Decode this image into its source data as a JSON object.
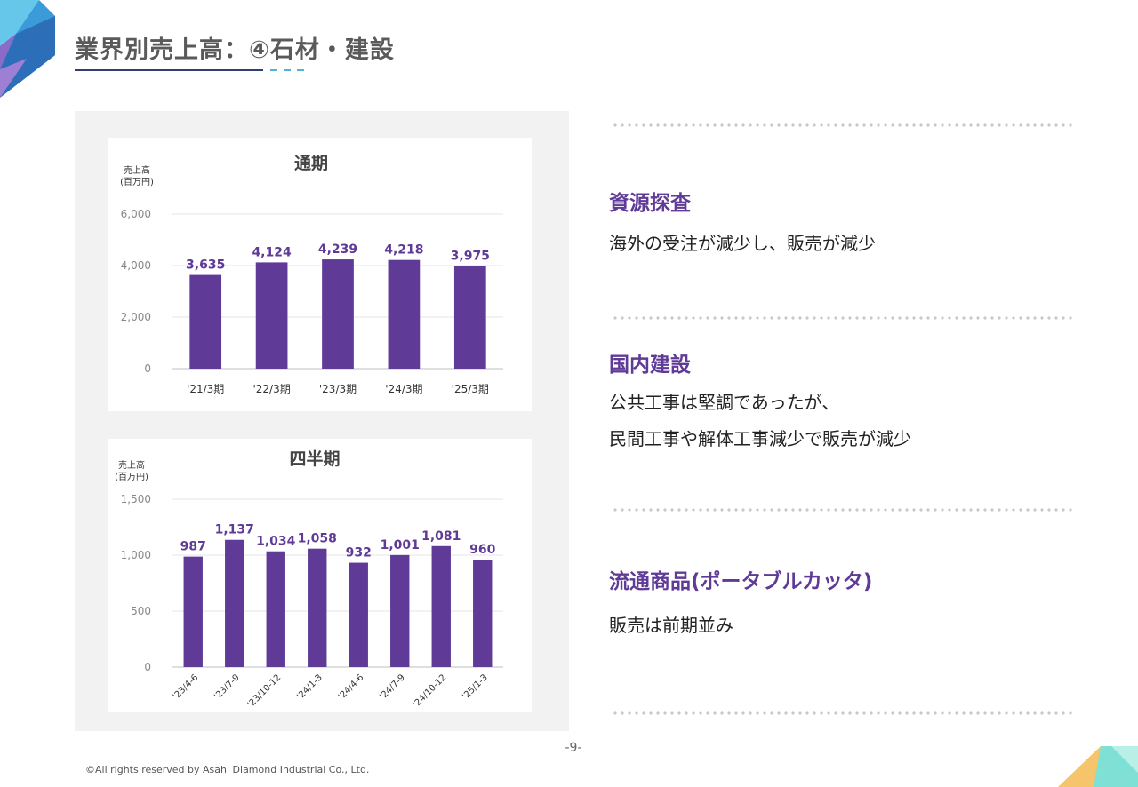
{
  "header": {
    "title": "業界別売上高：④石材・建設"
  },
  "colors": {
    "bar": "#5f3b97",
    "accent": "#5f3b97",
    "title": "#5a5a5a"
  },
  "chart_data": [
    {
      "type": "bar",
      "title": "通期",
      "ylabel": "売上高\n(百万円)",
      "categories": [
        "'21/3期",
        "'22/3期",
        "'23/3期",
        "'24/3期",
        "'25/3期"
      ],
      "values": [
        3635,
        4124,
        4239,
        4218,
        3975
      ],
      "value_labels": [
        "3,635",
        "4,124",
        "4,239",
        "4,218",
        "3,975"
      ],
      "ylim": [
        0,
        6000
      ],
      "yticks": [
        "0",
        "2,000",
        "4,000",
        "6,000"
      ],
      "ytick_values": [
        0,
        2000,
        4000,
        6000
      ],
      "grid": true
    },
    {
      "type": "bar",
      "title": "四半期",
      "ylabel": "売上高\n(百万円)",
      "categories": [
        "'23/4-6",
        "'23/7-9",
        "'23/10-12",
        "'24/1-3",
        "'24/4-6",
        "'24/7-9",
        "'24/10-12",
        "'25/1-3"
      ],
      "values": [
        987,
        1137,
        1034,
        1058,
        932,
        1001,
        1081,
        960
      ],
      "value_labels": [
        "987",
        "1,137",
        "1,034",
        "1,058",
        "932",
        "1,001",
        "1,081",
        "960"
      ],
      "ylim": [
        0,
        1500
      ],
      "yticks": [
        "0",
        "500",
        "1,000",
        "1,500"
      ],
      "ytick_values": [
        0,
        500,
        1000,
        1500
      ],
      "grid": true
    }
  ],
  "commentary": {
    "sections": [
      {
        "heading": "資源探査",
        "lines": [
          "海外の受注が減少し、販売が減少"
        ]
      },
      {
        "heading": "国内建設",
        "lines": [
          "公共工事は堅調であったが、",
          "民間工事や解体工事減少で販売が減少"
        ]
      },
      {
        "heading": "流通商品(ポータブルカッタ)",
        "lines": [
          "販売は前期並み"
        ]
      }
    ]
  },
  "footer": {
    "page_number": "-9-",
    "copyright": "©All rights reserved by Asahi Diamond Industrial Co., Ltd."
  }
}
